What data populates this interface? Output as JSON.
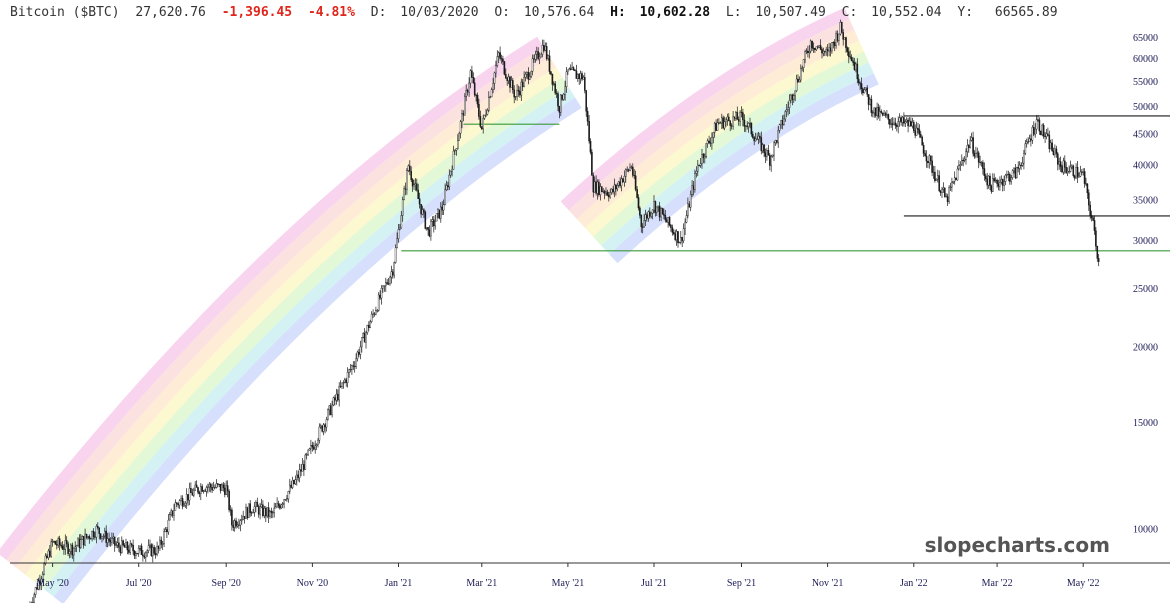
{
  "header": {
    "symbol": "Bitcoin ($BTC)",
    "last": "27,620.76",
    "change": "-1,396.45",
    "change_pct": "-4.81%",
    "date_label": "D:",
    "date": "10/03/2020",
    "open_label": "O:",
    "open": "10,576.64",
    "high_label": "H:",
    "high": "10,602.28",
    "low_label": "L:",
    "low": "10,507.49",
    "close_label": "C:",
    "close": "10,552.04",
    "y_label": "Y:",
    "y_value": "66565.89"
  },
  "watermark": "slopecharts.com",
  "colors": {
    "candles": "#1a1a1a",
    "support_lines": "#3a9a3a",
    "range_lines": "#1a1a1a",
    "negative_change": "#e0251b",
    "axis_text": "#1a1a55",
    "rainbow": [
      "#f5c6e8",
      "#fbd7d7",
      "#fde6c8",
      "#fbf6c0",
      "#d8f5c8",
      "#c6eef0",
      "#c8d4fb"
    ]
  },
  "chart_data": {
    "type": "line",
    "scale": "log",
    "x": [
      "2020-04-15",
      "2020-05-01",
      "2020-05-15",
      "2020-06-01",
      "2020-06-15",
      "2020-07-01",
      "2020-07-15",
      "2020-07-27",
      "2020-08-15",
      "2020-09-01",
      "2020-09-05",
      "2020-09-20",
      "2020-10-03",
      "2020-10-20",
      "2020-11-01",
      "2020-11-15",
      "2020-12-01",
      "2020-12-15",
      "2020-12-28",
      "2021-01-08",
      "2021-01-22",
      "2021-02-01",
      "2021-02-15",
      "2021-02-21",
      "2021-03-01",
      "2021-03-13",
      "2021-03-25",
      "2021-04-14",
      "2021-04-25",
      "2021-05-01",
      "2021-05-12",
      "2021-05-19",
      "2021-06-01",
      "2021-06-15",
      "2021-06-22",
      "2021-07-01",
      "2021-07-20",
      "2021-08-01",
      "2021-08-15",
      "2021-09-01",
      "2021-09-07",
      "2021-09-21",
      "2021-10-01",
      "2021-10-20",
      "2021-11-01",
      "2021-11-10",
      "2021-11-26",
      "2021-12-04",
      "2021-12-15",
      "2022-01-01",
      "2022-01-24",
      "2022-02-10",
      "2022-02-24",
      "2022-03-15",
      "2022-03-29",
      "2022-04-15",
      "2022-05-01",
      "2022-05-09",
      "2022-05-12"
    ],
    "values": [
      7500,
      9500,
      9300,
      10000,
      9400,
      9200,
      9250,
      11000,
      11800,
      11700,
      10200,
      10900,
      10552,
      12000,
      13700,
      16000,
      19000,
      23000,
      27000,
      40000,
      31000,
      34000,
      48000,
      57000,
      46000,
      61000,
      52000,
      63500,
      50000,
      57000,
      56000,
      37000,
      36000,
      40000,
      32000,
      34500,
      30000,
      40000,
      47000,
      48000,
      46000,
      41000,
      48000,
      64000,
      61000,
      67500,
      53700,
      49000,
      47500,
      46500,
      35000,
      44000,
      37000,
      39000,
      47500,
      40000,
      38500,
      31000,
      27620.76
    ],
    "ylim": [
      8800,
      67500
    ],
    "xlim": [
      "2020-04-15",
      "2022-05-20"
    ],
    "yticks": [
      10000,
      15000,
      20000,
      25000,
      30000,
      35000,
      40000,
      45000,
      50000,
      55000,
      60000,
      65000
    ],
    "ytick_labels": [
      "10000",
      "15000",
      "20000",
      "25000",
      "30000",
      "35000",
      "40000",
      "45000",
      "50000",
      "55000",
      "60000",
      "65000"
    ],
    "xticks": [
      "2020-05-01",
      "2020-07-01",
      "2020-09-01",
      "2020-11-01",
      "2021-01-01",
      "2021-03-01",
      "2021-05-01",
      "2021-07-01",
      "2021-09-01",
      "2021-11-01",
      "2022-01-01",
      "2022-03-01",
      "2022-05-01"
    ],
    "xtick_labels": [
      "May '20",
      "Jul '20",
      "Sep '20",
      "Nov '20",
      "Jan '21",
      "Mar '21",
      "May '21",
      "Jul '21",
      "Sep '21",
      "Nov '21",
      "Jan '22",
      "Mar '22",
      "May '22"
    ],
    "horizontal_lines": [
      {
        "kind": "support",
        "value": 28900,
        "from": "2021-01-03",
        "to": "2022-05-20"
      },
      {
        "kind": "support",
        "value": 46800,
        "from": "2021-02-16",
        "to": "2021-04-25"
      },
      {
        "kind": "range",
        "value": 48300,
        "from": "2021-12-25",
        "to": "2022-05-20"
      },
      {
        "kind": "range",
        "value": 33000,
        "from": "2021-12-25",
        "to": "2022-05-20"
      }
    ],
    "rainbow_channels": [
      {
        "from": "2020-04-15",
        "to": "2021-04-25",
        "center_start": 8300,
        "center_end": 57000,
        "curvature": 0.35
      },
      {
        "from": "2021-05-16",
        "to": "2021-11-25",
        "center_start": 31000,
        "center_end": 63000,
        "curvature": 0.35
      }
    ],
    "grid": false,
    "legend": "none"
  }
}
